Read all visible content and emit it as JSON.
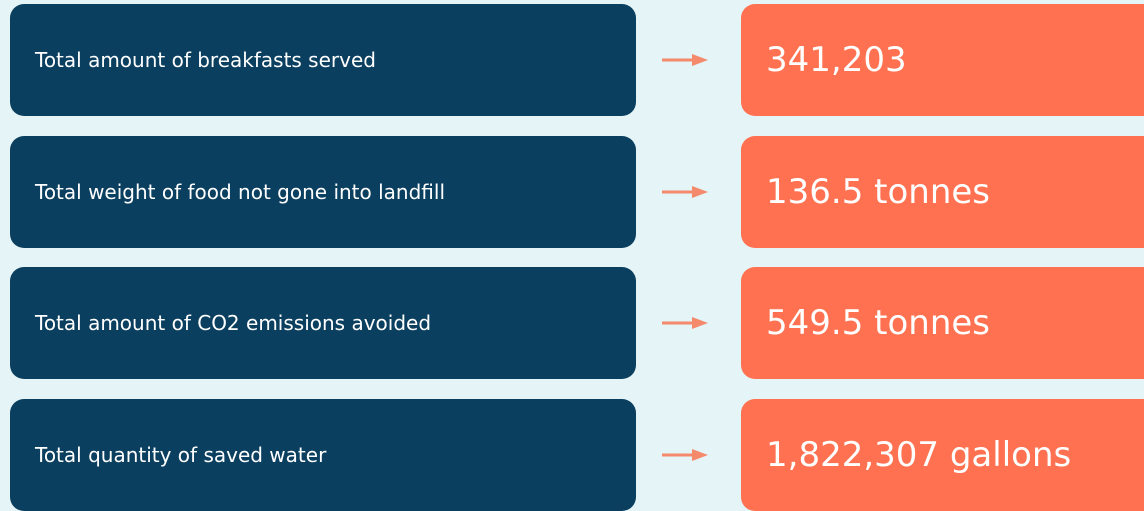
{
  "rows": [
    {
      "label": "Total amount of breakfasts served",
      "value": "341,203"
    },
    {
      "label": "Total weight of food not gone into landfill",
      "value": "136.5 tonnes"
    },
    {
      "label": "Total amount of CO2 emissions avoided",
      "value": "549.5 tonnes"
    },
    {
      "label": "Total quantity of saved water",
      "value": "1,822,307 gallons"
    }
  ]
}
